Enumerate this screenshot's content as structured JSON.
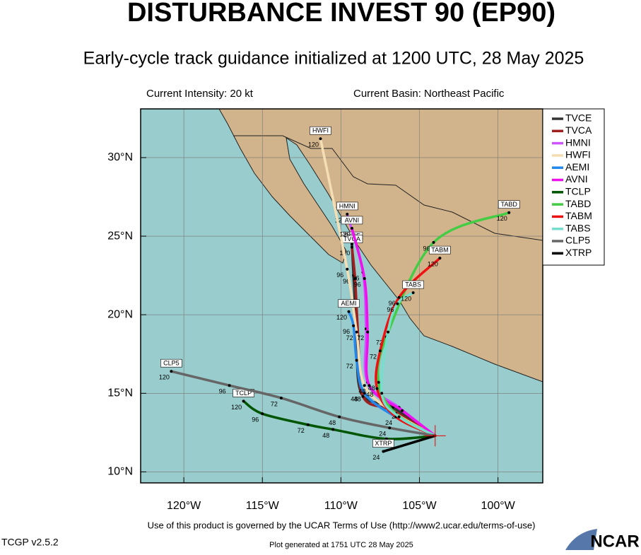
{
  "header": {
    "title": "DISTURBANCE INVEST 90 (EP90)",
    "subtitle": "Early-cycle track guidance initialized at 1200 UTC, 28 May 2025"
  },
  "map": {
    "intensity": "Current Intensity: 20 kt",
    "basin": "Current Basin: Northeast Pacific",
    "lonlim": [
      -122.75,
      -97.15
    ],
    "latlim": [
      9.3,
      33.1
    ],
    "lonticks": [
      {
        "value": -120,
        "label": "120°W"
      },
      {
        "value": -115,
        "label": "115°W"
      },
      {
        "value": -110,
        "label": "110°W"
      },
      {
        "value": -105,
        "label": "105°W"
      },
      {
        "value": -100,
        "label": "100°W"
      }
    ],
    "latticks": [
      {
        "value": 10,
        "label": "10°N"
      },
      {
        "value": 15,
        "label": "15°N"
      },
      {
        "value": 20,
        "label": "20°N"
      },
      {
        "value": 25,
        "label": "25°N"
      },
      {
        "value": 30,
        "label": "30°N"
      }
    ],
    "current_position": {
      "lon": -104,
      "lat": 12.3
    },
    "tracks": [
      {
        "name": "TVCE",
        "color": "#333333",
        "lon": [
          -104,
          -106.7,
          -108.7,
          -109.0,
          -109.2,
          -109.3
        ],
        "lat": [
          12.3,
          14.1,
          15.0,
          18.9,
          22.5,
          24.5
        ],
        "hour_labels": [
          null,
          null,
          48,
          72,
          96,
          null
        ]
      },
      {
        "name": "TVCA",
        "color": "#a02020",
        "lon": [
          -104,
          -106.7,
          -108.6,
          -108.9,
          -109.1,
          -109.3
        ],
        "lat": [
          12.3,
          13.9,
          14.8,
          18.6,
          22.3,
          24.3
        ],
        "hour_labels": [
          null,
          null,
          null,
          null,
          null,
          120
        ]
      },
      {
        "name": "HMNI",
        "color": "#cc55ff",
        "lon": [
          -104,
          -106.3,
          -108.3,
          -108.4,
          -108.6,
          -109.6
        ],
        "lat": [
          12.3,
          14.1,
          15.7,
          19.1,
          22.7,
          26.4
        ],
        "hour_labels": [
          null,
          null,
          null,
          null,
          96,
          120
        ]
      },
      {
        "name": "HWFI",
        "color": "#f5deb3",
        "lon": [
          -104,
          -106.5,
          -108.5,
          -109.0,
          -109.6,
          -111.3
        ],
        "lat": [
          12.3,
          13.7,
          15.5,
          18.9,
          22.9,
          31.2
        ],
        "hour_labels": [
          null,
          null,
          null,
          null,
          96,
          120
        ]
      },
      {
        "name": "AEMI",
        "color": "#2288ee",
        "lon": [
          -104,
          -106.5,
          -108.5,
          -109.0,
          -109.2,
          -109.5
        ],
        "lat": [
          12.3,
          13.5,
          15.0,
          17.1,
          19.3,
          20.2
        ],
        "hour_labels": [
          null,
          null,
          48,
          72,
          96,
          120
        ]
      },
      {
        "name": "AVNI",
        "color": "#ee11ee",
        "lon": [
          -104,
          -106.1,
          -108.2,
          -108.3,
          -108.5,
          -109.3
        ],
        "lat": [
          12.3,
          13.9,
          15.5,
          18.9,
          22.3,
          25.5
        ],
        "hour_labels": [
          null,
          24,
          48,
          72,
          96,
          120
        ]
      },
      {
        "name": "TCLP",
        "color": "#005500",
        "lon": [
          -104,
          -107.1,
          -110.5,
          -112.1,
          -115.0,
          -116.2
        ],
        "lat": [
          12.3,
          12.1,
          12.7,
          13.0,
          13.7,
          14.5
        ],
        "hour_labels": [
          null,
          24,
          48,
          72,
          96,
          120
        ]
      },
      {
        "name": "TABD",
        "color": "#44cc44",
        "lon": [
          -104,
          -106.5,
          -107.6,
          -107.1,
          -104.1,
          -99.3
        ],
        "lat": [
          12.3,
          13.7,
          15.7,
          18.6,
          24.6,
          26.5
        ],
        "hour_labels": [
          null,
          null,
          48,
          72,
          96,
          120
        ]
      },
      {
        "name": "TABM",
        "color": "#ee1111",
        "lon": [
          -104,
          -106.5,
          -107.7,
          -107.5,
          -106.3,
          -103.7
        ],
        "lat": [
          12.3,
          13.5,
          15.3,
          17.7,
          21.1,
          23.6
        ],
        "hour_labels": [
          null,
          24,
          48,
          72,
          96,
          120
        ]
      },
      {
        "name": "TABS",
        "color": "#77ddcc",
        "lon": [
          -104,
          -106.3,
          -107.4,
          -107.0,
          -106.4,
          -105.4
        ],
        "lat": [
          12.3,
          13.5,
          15.0,
          18.9,
          20.7,
          21.4
        ],
        "hour_labels": [
          null,
          null,
          null,
          null,
          96,
          120
        ]
      },
      {
        "name": "CLP5",
        "color": "#666666",
        "lon": [
          -104,
          -106.9,
          -110.1,
          -113.8,
          -117.1,
          -120.8
        ],
        "lat": [
          12.3,
          12.8,
          13.5,
          14.7,
          15.5,
          16.4
        ],
        "hour_labels": [
          null,
          24,
          48,
          72,
          96,
          120
        ]
      },
      {
        "name": "XTRP",
        "color": "#000000",
        "lon": [
          -104,
          -107.3
        ],
        "lat": [
          12.3,
          11.3
        ],
        "hour_labels": [
          null,
          24
        ]
      }
    ]
  },
  "footer": {
    "terms": "Use of this product is governed by the UCAR Terms of Use (http://www2.ucar.edu/terms-of-use)",
    "version": "TCGP v2.5.2",
    "generated": "Plot generated at 1751 UTC  28 May 2025",
    "logo": "NCAR"
  }
}
